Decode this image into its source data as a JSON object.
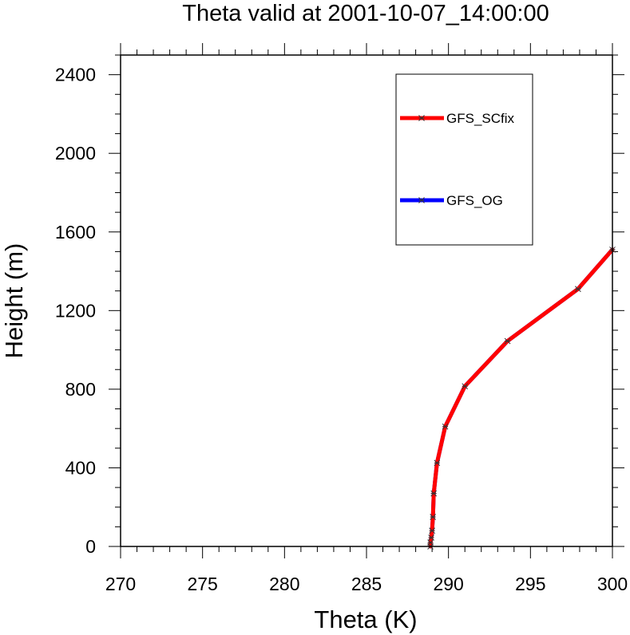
{
  "chart_data": {
    "type": "line",
    "title": "Theta valid at 2001-10-07_14:00:00",
    "xlabel": "Theta (K)",
    "ylabel": "Height (m)",
    "xlim": [
      270,
      300
    ],
    "ylim": [
      0,
      2500
    ],
    "xticks": [
      270,
      275,
      280,
      285,
      290,
      295,
      300
    ],
    "yticks": [
      0,
      400,
      800,
      1200,
      1600,
      2000,
      2400
    ],
    "grid": false,
    "legend_position": "top-right",
    "series": [
      {
        "name": "GFS_SCfix",
        "color": "#ff0000",
        "marker": "asterisk",
        "x": [
          288.9,
          288.9,
          288.95,
          289.0,
          289.05,
          289.1,
          289.3,
          289.8,
          291.0,
          293.6,
          297.9,
          300.0
        ],
        "y": [
          0,
          20,
          45,
          80,
          150,
          270,
          425,
          610,
          815,
          1045,
          1310,
          1510
        ]
      },
      {
        "name": "GFS_OG",
        "color": "#0000ff",
        "marker": "asterisk",
        "x": [
          288.9,
          288.9,
          288.95,
          289.0,
          289.05,
          289.1,
          289.3,
          289.8,
          291.0,
          293.6,
          297.9,
          300.0
        ],
        "y": [
          0,
          20,
          45,
          80,
          150,
          270,
          425,
          610,
          815,
          1045,
          1310,
          1510
        ]
      }
    ]
  }
}
